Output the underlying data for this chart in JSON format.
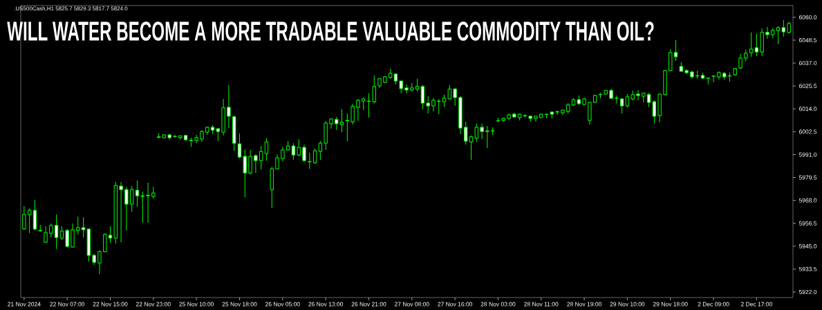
{
  "chart_data": {
    "type": "candlestick",
    "title": "WILL WATER BECOME A MORE TRADABLE VALUABLE COMMODITY THAN OIL?",
    "subtitle": ".US500Cash,H1  5825.7 5829.3 5817.7 5824.0",
    "categories": [
      "21 Nov 2024",
      null,
      null,
      null,
      null,
      null,
      null,
      null,
      "22 Nov 07:00",
      null,
      null,
      null,
      null,
      null,
      null,
      null,
      "22 Nov 15:00",
      null,
      null,
      null,
      null,
      null,
      null,
      null,
      "22 Nov 23:00",
      null,
      null,
      null,
      null,
      null,
      null,
      null,
      "25 Nov 10:00",
      null,
      null,
      null,
      null,
      null,
      null,
      null,
      "25 Nov 18:00",
      null,
      null,
      null,
      null,
      null,
      null,
      null,
      "26 Nov 05:00",
      null,
      null,
      null,
      null,
      null,
      null,
      null,
      "26 Nov 13:00",
      null,
      null,
      null,
      null,
      null,
      null,
      null,
      "26 Nov 21:00",
      null,
      null,
      null,
      null,
      null,
      null,
      null,
      "27 Nov 08:00",
      null,
      null,
      null,
      null,
      null,
      null,
      null,
      "27 Nov 16:00",
      null,
      null,
      null,
      null,
      null,
      null,
      null,
      "28 Nov 03:00",
      null,
      null,
      null,
      null,
      null,
      null,
      null,
      "28 Nov 11:00",
      null,
      null,
      null,
      null,
      null,
      null,
      null,
      "28 Nov 19:00",
      null,
      null,
      null,
      null,
      null,
      null,
      null,
      "29 Nov 10:00",
      null,
      null,
      null,
      null,
      null,
      null,
      null,
      "29 Nov 18:00",
      null,
      null,
      null,
      null,
      null,
      null,
      null,
      "2 Dec 09:00",
      null,
      null,
      null,
      null,
      null,
      null,
      null,
      "2 Dec 17:00",
      null,
      null,
      null,
      null,
      null,
      null
    ],
    "ohlc": [
      [
        5953.7,
        5965.1,
        5953.3,
        5960.9
      ],
      [
        5960.9,
        5964.0,
        5951.5,
        5963.0
      ],
      [
        5963.0,
        5968.2,
        5952.9,
        5953.6
      ],
      [
        5952.9,
        5955.7,
        5952.2,
        5952.7
      ],
      [
        5947.0,
        5955.0,
        5946.7,
        5951.9
      ],
      [
        5951.5,
        5956.4,
        5949.4,
        5955.4
      ],
      [
        5955.4,
        5960.9,
        5943.6,
        5949.4
      ],
      [
        5949.1,
        5955.0,
        5948.1,
        5952.6
      ],
      [
        5952.9,
        5953.6,
        5944.2,
        5944.9
      ],
      [
        5944.6,
        5956.4,
        5944.4,
        5953.3
      ],
      [
        5952.9,
        5959.9,
        5950.9,
        5954.3
      ],
      [
        5954.3,
        5959.5,
        5949.4,
        5953.3
      ],
      [
        5953.6,
        5953.6,
        5937.3,
        5940.4
      ],
      [
        5940.4,
        5941.1,
        5935.6,
        5936.9
      ],
      [
        5936.6,
        5942.9,
        5931.0,
        5942.2
      ],
      [
        5942.2,
        5951.5,
        5942.0,
        5950.9
      ],
      [
        5950.5,
        5955.0,
        5946.7,
        5949.1
      ],
      [
        5949.1,
        5977.3,
        5946.3,
        5975.5
      ],
      [
        5975.2,
        5977.3,
        5947.0,
        5973.4
      ],
      [
        5973.4,
        5974.8,
        5952.9,
        5966.1
      ],
      [
        5966.1,
        5975.2,
        5962.3,
        5973.4
      ],
      [
        5973.1,
        5978.0,
        5964.8,
        5970.3
      ],
      [
        5970.3,
        5972.4,
        5956.8,
        5970.0
      ],
      [
        5970.3,
        5976.9,
        5956.8,
        5970.6
      ],
      [
        5970.0,
        5974.8,
        5968.9,
        5971.7
      ],
      [
        5999.9,
        6001.6,
        5999.2,
        5999.7
      ],
      [
        5999.5,
        6001.3,
        5999.2,
        6000.9
      ],
      [
        6000.9,
        6001.6,
        5998.5,
        5999.5
      ],
      [
        6000.2,
        6000.9,
        5999.5,
        6000.1
      ],
      [
        5999.6,
        6000.5,
        5998.5,
        6000.5
      ],
      [
        6000.6,
        6000.6,
        5997.9,
        5998.5
      ],
      [
        5998.3,
        5999.5,
        5995.0,
        5998.1
      ],
      [
        5998.1,
        6000.9,
        5996.7,
        5999.5
      ],
      [
        5998.8,
        6003.3,
        5997.4,
        6002.6
      ],
      [
        6002.3,
        6005.1,
        6000.9,
        6004.7
      ],
      [
        6004.7,
        6005.8,
        6001.3,
        6003.3
      ],
      [
        6004.0,
        6004.4,
        5997.8,
        6002.6
      ],
      [
        6002.3,
        6019.0,
        6000.6,
        6014.5
      ],
      [
        6014.8,
        6025.9,
        6004.4,
        6010.3
      ],
      [
        6010.0,
        6010.6,
        5992.9,
        5996.7
      ],
      [
        5996.4,
        6001.6,
        5989.1,
        5989.8
      ],
      [
        5990.1,
        5993.6,
        5969.6,
        5981.8
      ],
      [
        5981.8,
        5993.3,
        5981.1,
        5990.1
      ],
      [
        5990.5,
        5991.2,
        5981.8,
        5988.0
      ],
      [
        5988.0,
        5995.3,
        5983.5,
        5992.6
      ],
      [
        5991.5,
        5999.2,
        5988.0,
        5997.4
      ],
      [
        5973.4,
        5984.9,
        5964.1,
        5983.9
      ],
      [
        5983.9,
        5991.2,
        5983.7,
        5989.4
      ],
      [
        5989.1,
        5995.0,
        5987.7,
        5993.3
      ],
      [
        5993.3,
        5997.8,
        5993.1,
        5995.3
      ],
      [
        5995.3,
        5996.7,
        5988.4,
        5990.8
      ],
      [
        5990.8,
        5998.8,
        5990.1,
        5994.6
      ],
      [
        5994.6,
        5996.0,
        5987.3,
        5988.0
      ],
      [
        5987.5,
        5991.9,
        5983.9,
        5987.4
      ],
      [
        5987.0,
        5994.0,
        5986.3,
        5992.9
      ],
      [
        5992.6,
        5997.8,
        5988.4,
        5996.7
      ],
      [
        5996.7,
        6007.9,
        5993.3,
        6006.8
      ],
      [
        6006.5,
        6009.2,
        6004.0,
        6008.9
      ],
      [
        6008.6,
        6010.0,
        6003.3,
        6006.5
      ],
      [
        6006.1,
        6013.8,
        6002.3,
        6007.2
      ],
      [
        6008.2,
        6011.7,
        5997.8,
        6008.0
      ],
      [
        6007.5,
        6016.6,
        6006.1,
        6015.2
      ],
      [
        6014.8,
        6019.0,
        6007.9,
        6018.3
      ],
      [
        6017.9,
        6019.7,
        6013.4,
        6019.0
      ],
      [
        6017.9,
        6021.8,
        6009.6,
        6017.8
      ],
      [
        6017.6,
        6030.8,
        6016.6,
        6025.2
      ],
      [
        6025.6,
        6029.4,
        6024.5,
        6029.1
      ],
      [
        6027.3,
        6030.5,
        6027.0,
        6030.1
      ],
      [
        6029.8,
        6034.3,
        6029.1,
        6031.8
      ],
      [
        6031.5,
        6031.8,
        6026.3,
        6028.0
      ],
      [
        6028.0,
        6028.0,
        6021.8,
        6024.2
      ],
      [
        6024.5,
        6026.3,
        6021.8,
        6023.5
      ],
      [
        6023.5,
        6027.0,
        6022.8,
        6024.5
      ],
      [
        6023.9,
        6029.1,
        6022.8,
        6025.2
      ],
      [
        6025.2,
        6025.9,
        6013.8,
        6016.9
      ],
      [
        6016.9,
        6020.4,
        6011.7,
        6015.5
      ],
      [
        6015.5,
        6019.3,
        6012.7,
        6018.3
      ],
      [
        6017.9,
        6019.0,
        6011.3,
        6017.8
      ],
      [
        6017.6,
        6021.1,
        6014.8,
        6019.3
      ],
      [
        6019.0,
        6025.9,
        6018.6,
        6023.9
      ],
      [
        6023.9,
        6024.5,
        6015.5,
        6019.7
      ],
      [
        6019.7,
        6020.4,
        6001.3,
        6004.4
      ],
      [
        6004.7,
        6007.5,
        5996.0,
        5997.8
      ],
      [
        5997.4,
        6000.6,
        5988.4,
        5999.9
      ],
      [
        5999.2,
        6006.5,
        5997.4,
        6004.7
      ],
      [
        6004.7,
        6006.5,
        5998.8,
        6002.6
      ],
      [
        6002.9,
        6005.4,
        5994.3,
        6002.6
      ],
      [
        6003.0,
        6004.7,
        6000.9,
        6002.9
      ],
      [
        6008.0,
        6009.6,
        6007.2,
        6007.9
      ],
      [
        6008.2,
        6009.6,
        6007.5,
        6009.2
      ],
      [
        6009.2,
        6011.7,
        6008.6,
        6011.0
      ],
      [
        6011.3,
        6012.0,
        6009.6,
        6009.9
      ],
      [
        6009.6,
        6011.7,
        6008.2,
        6011.3
      ],
      [
        6010.6,
        6011.3,
        6009.6,
        6010.5
      ],
      [
        6010.3,
        6010.6,
        6007.5,
        6009.2
      ],
      [
        6009.2,
        6010.4,
        6007.5,
        6010.3
      ],
      [
        6009.6,
        6011.7,
        6009.5,
        6011.3
      ],
      [
        6011.3,
        6011.7,
        6009.2,
        6011.2
      ],
      [
        6012.4,
        6012.7,
        6009.2,
        6011.3
      ],
      [
        6012.6,
        6013.1,
        6011.0,
        6012.4
      ],
      [
        6012.0,
        6013.5,
        6011.0,
        6013.4
      ],
      [
        6012.7,
        6016.9,
        6011.7,
        6015.9
      ],
      [
        6015.9,
        6019.3,
        6015.5,
        6018.6
      ],
      [
        6018.6,
        6020.7,
        6015.9,
        6016.6
      ],
      [
        6016.2,
        6019.7,
        6016.0,
        6019.0
      ],
      [
        6008.2,
        6017.6,
        6006.1,
        6017.2
      ],
      [
        6017.2,
        6021.1,
        6016.9,
        6020.7
      ],
      [
        6021.2,
        6022.1,
        6019.3,
        6021.1
      ],
      [
        6021.4,
        6023.5,
        6021.1,
        6023.2
      ],
      [
        6023.2,
        6023.9,
        6019.0,
        6019.3
      ],
      [
        6019.4,
        6020.7,
        6016.6,
        6019.3
      ],
      [
        6019.0,
        6019.3,
        6011.7,
        6015.5
      ],
      [
        6015.5,
        6021.4,
        6014.8,
        6020.0
      ],
      [
        6019.0,
        6023.2,
        6018.3,
        6021.1
      ],
      [
        6021.4,
        6023.5,
        6018.3,
        6020.7
      ],
      [
        6020.4,
        6022.1,
        6017.2,
        6021.8
      ],
      [
        6021.1,
        6022.1,
        6014.8,
        6017.2
      ],
      [
        6017.6,
        6018.3,
        6006.5,
        6010.3
      ],
      [
        6010.6,
        6021.5,
        6007.2,
        6021.4
      ],
      [
        6021.1,
        6033.6,
        6020.7,
        6033.2
      ],
      [
        6033.2,
        6044.0,
        6032.9,
        6042.3
      ],
      [
        6042.3,
        6048.5,
        6038.1,
        6040.2
      ],
      [
        6035.3,
        6037.4,
        6032.7,
        6032.9
      ],
      [
        6033.2,
        6033.9,
        6031.5,
        6032.2
      ],
      [
        6032.5,
        6033.2,
        6029.1,
        6030.1
      ],
      [
        6030.6,
        6033.2,
        6029.1,
        6030.5
      ],
      [
        6030.8,
        6032.2,
        6029.1,
        6029.4
      ],
      [
        6029.5,
        6029.6,
        6026.3,
        6029.4
      ],
      [
        6030.5,
        6030.6,
        6027.3,
        6030.4
      ],
      [
        6030.1,
        6032.9,
        6028.7,
        6032.2
      ],
      [
        6031.8,
        6032.5,
        6028.7,
        6030.1
      ],
      [
        6030.6,
        6032.2,
        6027.7,
        6030.5
      ],
      [
        6031.1,
        6034.6,
        6030.5,
        6034.3
      ],
      [
        6034.6,
        6041.6,
        6033.9,
        6039.5
      ],
      [
        6039.5,
        6043.7,
        6037.8,
        6041.9
      ],
      [
        6042.3,
        6052.4,
        6040.2,
        6044.0
      ],
      [
        6044.7,
        6051.7,
        6040.5,
        6042.6
      ],
      [
        6042.6,
        6054.4,
        6040.5,
        6052.4
      ],
      [
        6052.4,
        6055.1,
        6049.2,
        6051.3
      ],
      [
        6051.3,
        6054.4,
        6049.6,
        6053.4
      ],
      [
        6053.4,
        6055.5,
        6046.4,
        6054.8
      ],
      [
        6054.8,
        6058.6,
        6050.3,
        6052.7
      ],
      [
        6052.4,
        6057.9,
        6051.7,
        6056.9
      ]
    ],
    "color": "#00ff00",
    "colors": [
      "#000000",
      "#000000",
      "#ffffff",
      "#ffffff",
      "#000000",
      "#000000",
      "#ffffff",
      "#000000",
      "#ffffff",
      "#000000",
      "#000000",
      "#ffffff",
      "#ffffff",
      "#ffffff",
      "#000000",
      "#000000",
      "#ffffff",
      "#000000",
      "#ffffff",
      "#ffffff",
      "#000000",
      "#ffffff",
      "#ffffff",
      "#000000",
      "#000000",
      "#ffffff",
      "#000000",
      "#ffffff",
      "#ffffff",
      "#000000",
      "#ffffff",
      "#ffffff",
      "#000000",
      "#000000",
      "#000000",
      "#ffffff",
      "#ffffff",
      "#000000",
      "#ffffff",
      "#ffffff",
      "#ffffff",
      "#ffffff",
      "#000000",
      "#ffffff",
      "#000000",
      "#000000",
      "#000000",
      "#000000",
      "#000000",
      "#000000",
      "#ffffff",
      "#000000",
      "#ffffff",
      "#ffffff",
      "#000000",
      "#000000",
      "#000000",
      "#000000",
      "#ffffff",
      "#000000",
      "#ffffff",
      "#000000",
      "#000000",
      "#000000",
      "#ffffff",
      "#000000",
      "#000000",
      "#000000",
      "#000000",
      "#ffffff",
      "#ffffff",
      "#ffffff",
      "#000000",
      "#000000",
      "#ffffff",
      "#ffffff",
      "#000000",
      "#ffffff",
      "#000000",
      "#000000",
      "#ffffff",
      "#ffffff",
      "#ffffff",
      "#000000",
      "#000000",
      "#ffffff",
      "#ffffff",
      "#ffffff",
      "#ffffff",
      "#000000",
      "#000000",
      "#ffffff",
      "#000000",
      "#ffffff",
      "#ffffff",
      "#000000",
      "#000000",
      "#ffffff",
      "#ffffff",
      "#ffffff",
      "#000000",
      "#000000",
      "#000000",
      "#ffffff",
      "#000000",
      "#000000",
      "#000000",
      "#ffffff",
      "#000000",
      "#ffffff",
      "#ffffff",
      "#ffffff",
      "#000000",
      "#000000",
      "#ffffff",
      "#000000",
      "#ffffff",
      "#ffffff",
      "#000000",
      "#000000",
      "#000000",
      "#ffffff",
      "#ffffff",
      "#ffffff",
      "#ffffff",
      "#ffffff",
      "#ffffff",
      "#ffffff",
      "#ffffff",
      "#000000",
      "#ffffff",
      "#ffffff",
      "#000000",
      "#000000",
      "#000000",
      "#000000",
      "#ffffff",
      "#000000",
      "#ffffff",
      "#000000",
      "#000000",
      "#ffffff",
      "#000000"
    ],
    "ylim": [
      5919.2,
      6065.9
    ],
    "yticks": [
      {
        "value": 6060,
        "label": "6060.0"
      },
      {
        "value": 6048.5,
        "label": "6048.5"
      },
      {
        "value": 6037,
        "label": "6037.0"
      },
      {
        "value": 6025.5,
        "label": "6025.5"
      },
      {
        "value": 6014,
        "label": "6014.0"
      },
      {
        "value": 6002.5,
        "label": "6002.5"
      },
      {
        "value": 5991,
        "label": "5991.0"
      },
      {
        "value": 5979.5,
        "label": "5979.5"
      },
      {
        "value": 5968,
        "label": "5968.0"
      },
      {
        "value": 5956.5,
        "label": "5956.5"
      },
      {
        "value": 5945,
        "label": "5945.0"
      },
      {
        "value": 5933.5,
        "label": "5933.5"
      },
      {
        "value": 5922,
        "label": "5922.0"
      }
    ]
  }
}
